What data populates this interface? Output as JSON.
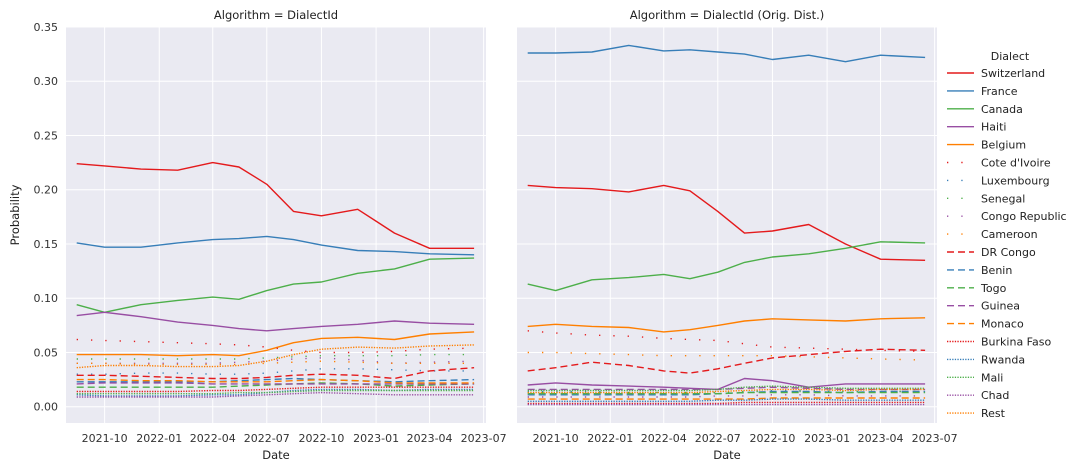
{
  "chart_data": {
    "type": "line",
    "ylabel": "Probability",
    "xlabel": "Date",
    "ylim": [
      -0.015,
      0.35
    ],
    "xlim": [
      "2021-07-28",
      "2023-07-05"
    ],
    "yticks": [
      0.0,
      0.05,
      0.1,
      0.15,
      0.2,
      0.25,
      0.3,
      0.35
    ],
    "ytick_labels": [
      "0.00",
      "0.05",
      "0.10",
      "0.15",
      "0.20",
      "0.25",
      "0.30",
      "0.35"
    ],
    "xticks": [
      "2021-10-01",
      "2022-01-01",
      "2022-04-01",
      "2022-07-01",
      "2022-10-01",
      "2023-01-01",
      "2023-04-01",
      "2023-07-01"
    ],
    "xtick_labels": [
      "2021-10",
      "2022-01",
      "2022-04",
      "2022-07",
      "2022-10",
      "2023-01",
      "2023-04",
      "2023-07"
    ],
    "grid": true,
    "legend_title": "Dialect",
    "legend_position": "right",
    "series_styles": [
      {
        "name": "Switzerland",
        "color": "#e41a1c",
        "dash": "solid"
      },
      {
        "name": "France",
        "color": "#377eb8",
        "dash": "solid"
      },
      {
        "name": "Canada",
        "color": "#4daf4a",
        "dash": "solid"
      },
      {
        "name": "Haiti",
        "color": "#984ea3",
        "dash": "solid"
      },
      {
        "name": "Belgium",
        "color": "#ff7f00",
        "dash": "solid"
      },
      {
        "name": "Cote d'Ivoire",
        "color": "#e41a1c",
        "dash": "sparse"
      },
      {
        "name": "Luxembourg",
        "color": "#377eb8",
        "dash": "sparse"
      },
      {
        "name": "Senegal",
        "color": "#4daf4a",
        "dash": "sparse"
      },
      {
        "name": "Congo Republic",
        "color": "#984ea3",
        "dash": "sparse"
      },
      {
        "name": "Cameroon",
        "color": "#ff7f00",
        "dash": "sparse"
      },
      {
        "name": "DR Congo",
        "color": "#e41a1c",
        "dash": "dashed"
      },
      {
        "name": "Benin",
        "color": "#377eb8",
        "dash": "dashed"
      },
      {
        "name": "Togo",
        "color": "#4daf4a",
        "dash": "dashed"
      },
      {
        "name": "Guinea",
        "color": "#984ea3",
        "dash": "dashed"
      },
      {
        "name": "Monaco",
        "color": "#ff7f00",
        "dash": "dashed"
      },
      {
        "name": "Burkina Faso",
        "color": "#e41a1c",
        "dash": "dotted"
      },
      {
        "name": "Rwanda",
        "color": "#377eb8",
        "dash": "dotted"
      },
      {
        "name": "Mali",
        "color": "#4daf4a",
        "dash": "dotted"
      },
      {
        "name": "Chad",
        "color": "#984ea3",
        "dash": "dotted"
      },
      {
        "name": "Rest",
        "color": "#ff7f00",
        "dash": "dotted"
      }
    ],
    "panels": [
      {
        "title": "Algorithm = DialectId",
        "x": [
          "2021-08-15",
          "2021-10-01",
          "2021-12-01",
          "2022-02-01",
          "2022-04-01",
          "2022-05-15",
          "2022-07-01",
          "2022-08-15",
          "2022-10-01",
          "2022-12-01",
          "2023-02-01",
          "2023-04-01",
          "2023-06-15"
        ],
        "series": [
          {
            "name": "Switzerland",
            "values": [
              0.224,
              0.222,
              0.219,
              0.218,
              0.225,
              0.221,
              0.205,
              0.18,
              0.176,
              0.182,
              0.16,
              0.146,
              0.146
            ]
          },
          {
            "name": "France",
            "values": [
              0.151,
              0.147,
              0.147,
              0.151,
              0.154,
              0.155,
              0.157,
              0.154,
              0.149,
              0.144,
              0.143,
              0.141,
              0.14
            ]
          },
          {
            "name": "Canada",
            "values": [
              0.094,
              0.087,
              0.094,
              0.098,
              0.101,
              0.099,
              0.107,
              0.113,
              0.115,
              0.123,
              0.127,
              0.136,
              0.137
            ]
          },
          {
            "name": "Haiti",
            "values": [
              0.084,
              0.087,
              0.083,
              0.078,
              0.075,
              0.072,
              0.07,
              0.072,
              0.074,
              0.076,
              0.079,
              0.077,
              0.076
            ]
          },
          {
            "name": "Belgium",
            "values": [
              0.048,
              0.048,
              0.048,
              0.047,
              0.048,
              0.047,
              0.052,
              0.059,
              0.063,
              0.064,
              0.062,
              0.067,
              0.069
            ]
          },
          {
            "name": "Cote d'Ivoire",
            "values": [
              0.062,
              0.061,
              0.06,
              0.059,
              0.058,
              0.057,
              0.055,
              0.052,
              0.05,
              0.05,
              0.051,
              0.053,
              0.054
            ]
          },
          {
            "name": "Luxembourg",
            "values": [
              0.03,
              0.03,
              0.031,
              0.031,
              0.03,
              0.03,
              0.031,
              0.033,
              0.035,
              0.035,
              0.034,
              0.033,
              0.033
            ]
          },
          {
            "name": "Senegal",
            "values": [
              0.044,
              0.044,
              0.044,
              0.044,
              0.044,
              0.044,
              0.045,
              0.046,
              0.047,
              0.047,
              0.047,
              0.048,
              0.048
            ]
          },
          {
            "name": "Congo Republic",
            "values": [
              0.04,
              0.04,
              0.04,
              0.04,
              0.04,
              0.041,
              0.042,
              0.044,
              0.045,
              0.043,
              0.04,
              0.041,
              0.042
            ]
          },
          {
            "name": "Cameroon",
            "values": [
              0.04,
              0.04,
              0.039,
              0.039,
              0.039,
              0.039,
              0.04,
              0.041,
              0.042,
              0.041,
              0.04,
              0.04,
              0.04
            ]
          },
          {
            "name": "DR Congo",
            "values": [
              0.029,
              0.029,
              0.028,
              0.027,
              0.026,
              0.026,
              0.027,
              0.029,
              0.03,
              0.029,
              0.026,
              0.033,
              0.036
            ]
          },
          {
            "name": "Benin",
            "values": [
              0.023,
              0.023,
              0.023,
              0.023,
              0.023,
              0.024,
              0.025,
              0.026,
              0.025,
              0.024,
              0.023,
              0.024,
              0.025
            ]
          },
          {
            "name": "Togo",
            "values": [
              0.018,
              0.018,
              0.018,
              0.018,
              0.018,
              0.019,
              0.02,
              0.021,
              0.022,
              0.021,
              0.019,
              0.02,
              0.021
            ]
          },
          {
            "name": "Guinea",
            "values": [
              0.021,
              0.022,
              0.022,
              0.022,
              0.021,
              0.021,
              0.021,
              0.021,
              0.021,
              0.021,
              0.021,
              0.021,
              0.021
            ]
          },
          {
            "name": "Monaco",
            "values": [
              0.025,
              0.025,
              0.024,
              0.024,
              0.023,
              0.023,
              0.023,
              0.024,
              0.025,
              0.024,
              0.022,
              0.022,
              0.022
            ]
          },
          {
            "name": "Burkina Faso",
            "values": [
              0.014,
              0.014,
              0.014,
              0.014,
              0.015,
              0.015,
              0.016,
              0.017,
              0.018,
              0.018,
              0.018,
              0.018,
              0.018
            ]
          },
          {
            "name": "Rwanda",
            "values": [
              0.011,
              0.01,
              0.01,
              0.01,
              0.011,
              0.011,
              0.013,
              0.015,
              0.016,
              0.016,
              0.015,
              0.016,
              0.016
            ]
          },
          {
            "name": "Mali",
            "values": [
              0.012,
              0.012,
              0.012,
              0.012,
              0.012,
              0.013,
              0.013,
              0.014,
              0.015,
              0.015,
              0.015,
              0.015,
              0.015
            ]
          },
          {
            "name": "Chad",
            "values": [
              0.009,
              0.009,
              0.009,
              0.009,
              0.009,
              0.01,
              0.011,
              0.012,
              0.013,
              0.012,
              0.011,
              0.011,
              0.011
            ]
          },
          {
            "name": "Rest",
            "values": [
              0.036,
              0.038,
              0.038,
              0.037,
              0.037,
              0.038,
              0.042,
              0.048,
              0.053,
              0.055,
              0.054,
              0.056,
              0.057
            ]
          }
        ]
      },
      {
        "title": "Algorithm = DialectId (Orig. Dist.)",
        "x": [
          "2021-08-15",
          "2021-10-01",
          "2021-12-01",
          "2022-02-01",
          "2022-04-01",
          "2022-05-15",
          "2022-07-01",
          "2022-08-15",
          "2022-10-01",
          "2022-12-01",
          "2023-02-01",
          "2023-04-01",
          "2023-06-15"
        ],
        "series": [
          {
            "name": "Switzerland",
            "values": [
              0.204,
              0.202,
              0.201,
              0.198,
              0.204,
              0.199,
              0.18,
              0.16,
              0.162,
              0.168,
              0.15,
              0.136,
              0.135
            ]
          },
          {
            "name": "France",
            "values": [
              0.326,
              0.326,
              0.327,
              0.333,
              0.328,
              0.329,
              0.327,
              0.325,
              0.32,
              0.324,
              0.318,
              0.324,
              0.322
            ]
          },
          {
            "name": "Canada",
            "values": [
              0.113,
              0.107,
              0.117,
              0.119,
              0.122,
              0.118,
              0.124,
              0.133,
              0.138,
              0.141,
              0.146,
              0.152,
              0.151
            ]
          },
          {
            "name": "Haiti",
            "values": [
              0.02,
              0.022,
              0.02,
              0.019,
              0.018,
              0.017,
              0.016,
              0.026,
              0.024,
              0.018,
              0.021,
              0.021,
              0.021
            ]
          },
          {
            "name": "Belgium",
            "values": [
              0.074,
              0.076,
              0.074,
              0.073,
              0.069,
              0.071,
              0.075,
              0.079,
              0.081,
              0.08,
              0.079,
              0.081,
              0.082
            ]
          },
          {
            "name": "Cote d'Ivoire",
            "values": [
              0.07,
              0.068,
              0.066,
              0.065,
              0.063,
              0.062,
              0.061,
              0.058,
              0.055,
              0.054,
              0.053,
              0.052,
              0.051
            ]
          },
          {
            "name": "Luxembourg",
            "values": [
              0.014,
              0.014,
              0.014,
              0.013,
              0.013,
              0.013,
              0.013,
              0.014,
              0.015,
              0.015,
              0.014,
              0.014,
              0.014
            ]
          },
          {
            "name": "Senegal",
            "values": [
              0.013,
              0.013,
              0.013,
              0.013,
              0.013,
              0.013,
              0.013,
              0.014,
              0.014,
              0.014,
              0.014,
              0.014,
              0.014
            ]
          },
          {
            "name": "Congo Republic",
            "values": [
              0.009,
              0.009,
              0.009,
              0.009,
              0.009,
              0.009,
              0.01,
              0.01,
              0.011,
              0.011,
              0.01,
              0.01,
              0.01
            ]
          },
          {
            "name": "Cameroon",
            "values": [
              0.05,
              0.05,
              0.049,
              0.048,
              0.047,
              0.047,
              0.047,
              0.047,
              0.047,
              0.046,
              0.045,
              0.044,
              0.043
            ]
          },
          {
            "name": "DR Congo",
            "values": [
              0.033,
              0.036,
              0.041,
              0.038,
              0.033,
              0.031,
              0.035,
              0.04,
              0.045,
              0.048,
              0.051,
              0.053,
              0.052
            ]
          },
          {
            "name": "Benin",
            "values": [
              0.011,
              0.011,
              0.011,
              0.011,
              0.011,
              0.011,
              0.012,
              0.013,
              0.014,
              0.014,
              0.013,
              0.014,
              0.014
            ]
          },
          {
            "name": "Togo",
            "values": [
              0.012,
              0.012,
              0.012,
              0.012,
              0.012,
              0.012,
              0.012,
              0.013,
              0.013,
              0.013,
              0.013,
              0.013,
              0.013
            ]
          },
          {
            "name": "Guinea",
            "values": [
              0.016,
              0.016,
              0.016,
              0.016,
              0.016,
              0.016,
              0.016,
              0.017,
              0.018,
              0.017,
              0.016,
              0.016,
              0.016
            ]
          },
          {
            "name": "Monaco",
            "values": [
              0.007,
              0.007,
              0.007,
              0.007,
              0.007,
              0.007,
              0.007,
              0.007,
              0.008,
              0.008,
              0.008,
              0.008,
              0.008
            ]
          },
          {
            "name": "Burkina Faso",
            "values": [
              0.003,
              0.003,
              0.003,
              0.003,
              0.003,
              0.003,
              0.003,
              0.004,
              0.004,
              0.004,
              0.004,
              0.004,
              0.004
            ]
          },
          {
            "name": "Rwanda",
            "values": [
              0.005,
              0.005,
              0.005,
              0.005,
              0.005,
              0.005,
              0.006,
              0.006,
              0.007,
              0.007,
              0.006,
              0.006,
              0.006
            ]
          },
          {
            "name": "Mali",
            "values": [
              0.015,
              0.015,
              0.015,
              0.015,
              0.015,
              0.015,
              0.016,
              0.018,
              0.019,
              0.018,
              0.017,
              0.017,
              0.017
            ]
          },
          {
            "name": "Chad",
            "values": [
              0.002,
              0.002,
              0.002,
              0.002,
              0.002,
              0.002,
              0.002,
              0.002,
              0.002,
              0.002,
              0.002,
              0.002,
              0.002
            ]
          },
          {
            "name": "Rest",
            "values": [
              0.013,
              0.013,
              0.013,
              0.013,
              0.013,
              0.013,
              0.014,
              0.015,
              0.016,
              0.016,
              0.015,
              0.016,
              0.016
            ]
          }
        ]
      }
    ]
  }
}
